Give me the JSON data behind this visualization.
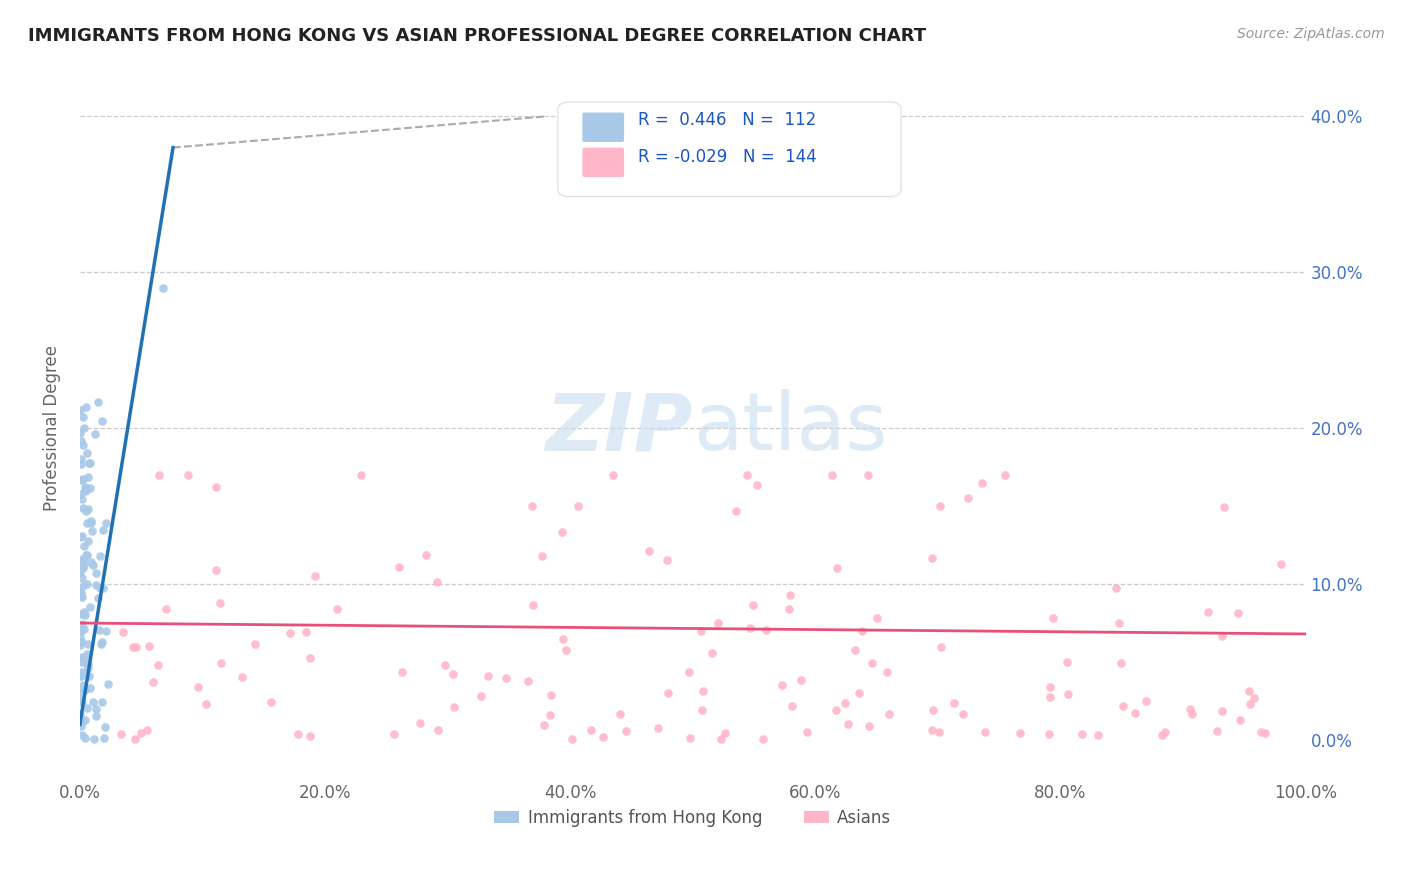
{
  "title": "IMMIGRANTS FROM HONG KONG VS ASIAN PROFESSIONAL DEGREE CORRELATION CHART",
  "source": "Source: ZipAtlas.com",
  "ylabel": "Professional Degree",
  "x_label_blue": "Immigrants from Hong Kong",
  "x_label_pink": "Asians",
  "xlim": [
    0.0,
    1.0
  ],
  "ylim": [
    -0.025,
    0.425
  ],
  "xticks": [
    0.0,
    0.2,
    0.4,
    0.6,
    0.8,
    1.0
  ],
  "xtick_labels": [
    "0.0%",
    "20.0%",
    "40.0%",
    "60.0%",
    "80.0%",
    "100.0%"
  ],
  "yticks": [
    0.0,
    0.1,
    0.2,
    0.3,
    0.4
  ],
  "ytick_labels": [
    "0.0%",
    "10.0%",
    "20.0%",
    "30.0%",
    "40.0%"
  ],
  "R_blue": 0.446,
  "N_blue": 112,
  "R_pink": -0.029,
  "N_pink": 144,
  "blue_scatter_color": "#a8c8e8",
  "pink_scatter_color": "#ffb6c8",
  "blue_line_color": "#2171b5",
  "pink_line_color": "#e8507a",
  "blue_trend_dashed_color": "#aaaaaa",
  "watermark_color": "#c8ddf0",
  "background_color": "#ffffff",
  "grid_color": "#cccccc",
  "title_color": "#222222",
  "tick_color_y": "#4472c4",
  "tick_color_x": "#666666"
}
